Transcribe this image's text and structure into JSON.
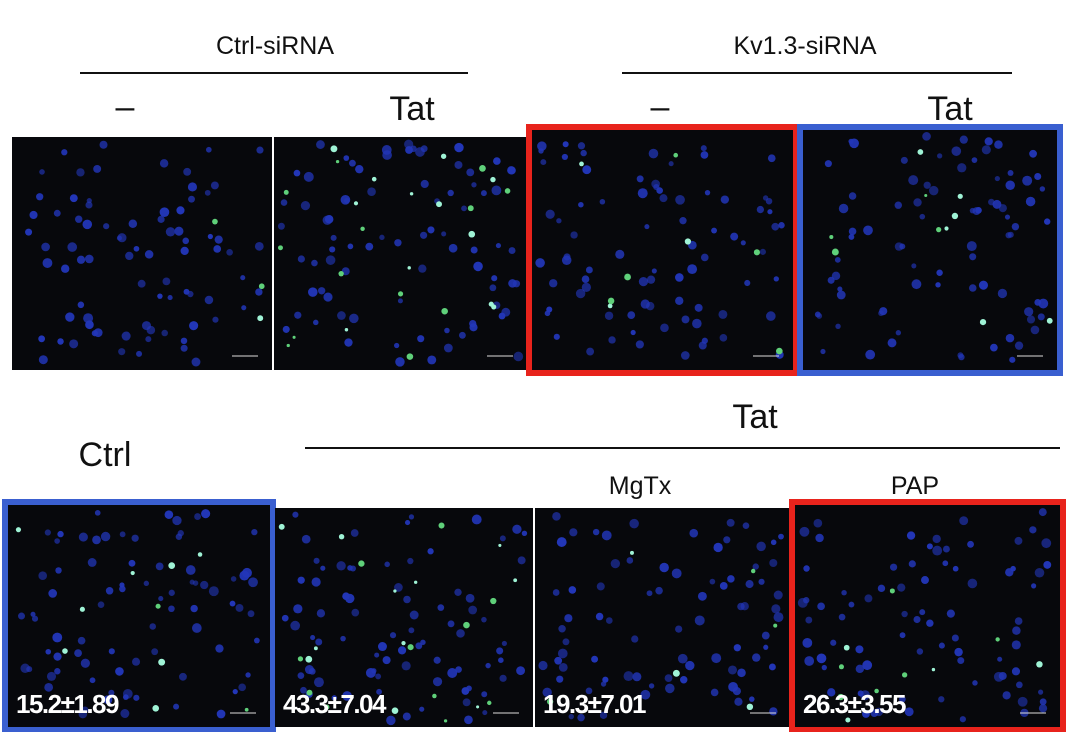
{
  "top": {
    "groups": [
      "Ctrl-siRNA",
      "Kv1.3-siRNA"
    ],
    "conditions": [
      "–",
      "Tat",
      "–",
      "Tat"
    ]
  },
  "bottom": {
    "control": "Ctrl",
    "group": "Tat",
    "conditions": [
      "MgTx",
      "PAP"
    ],
    "values": [
      "15.2±1.89",
      "43.3±7.04",
      "19.3±7.01",
      "26.3±3.55"
    ]
  }
}
